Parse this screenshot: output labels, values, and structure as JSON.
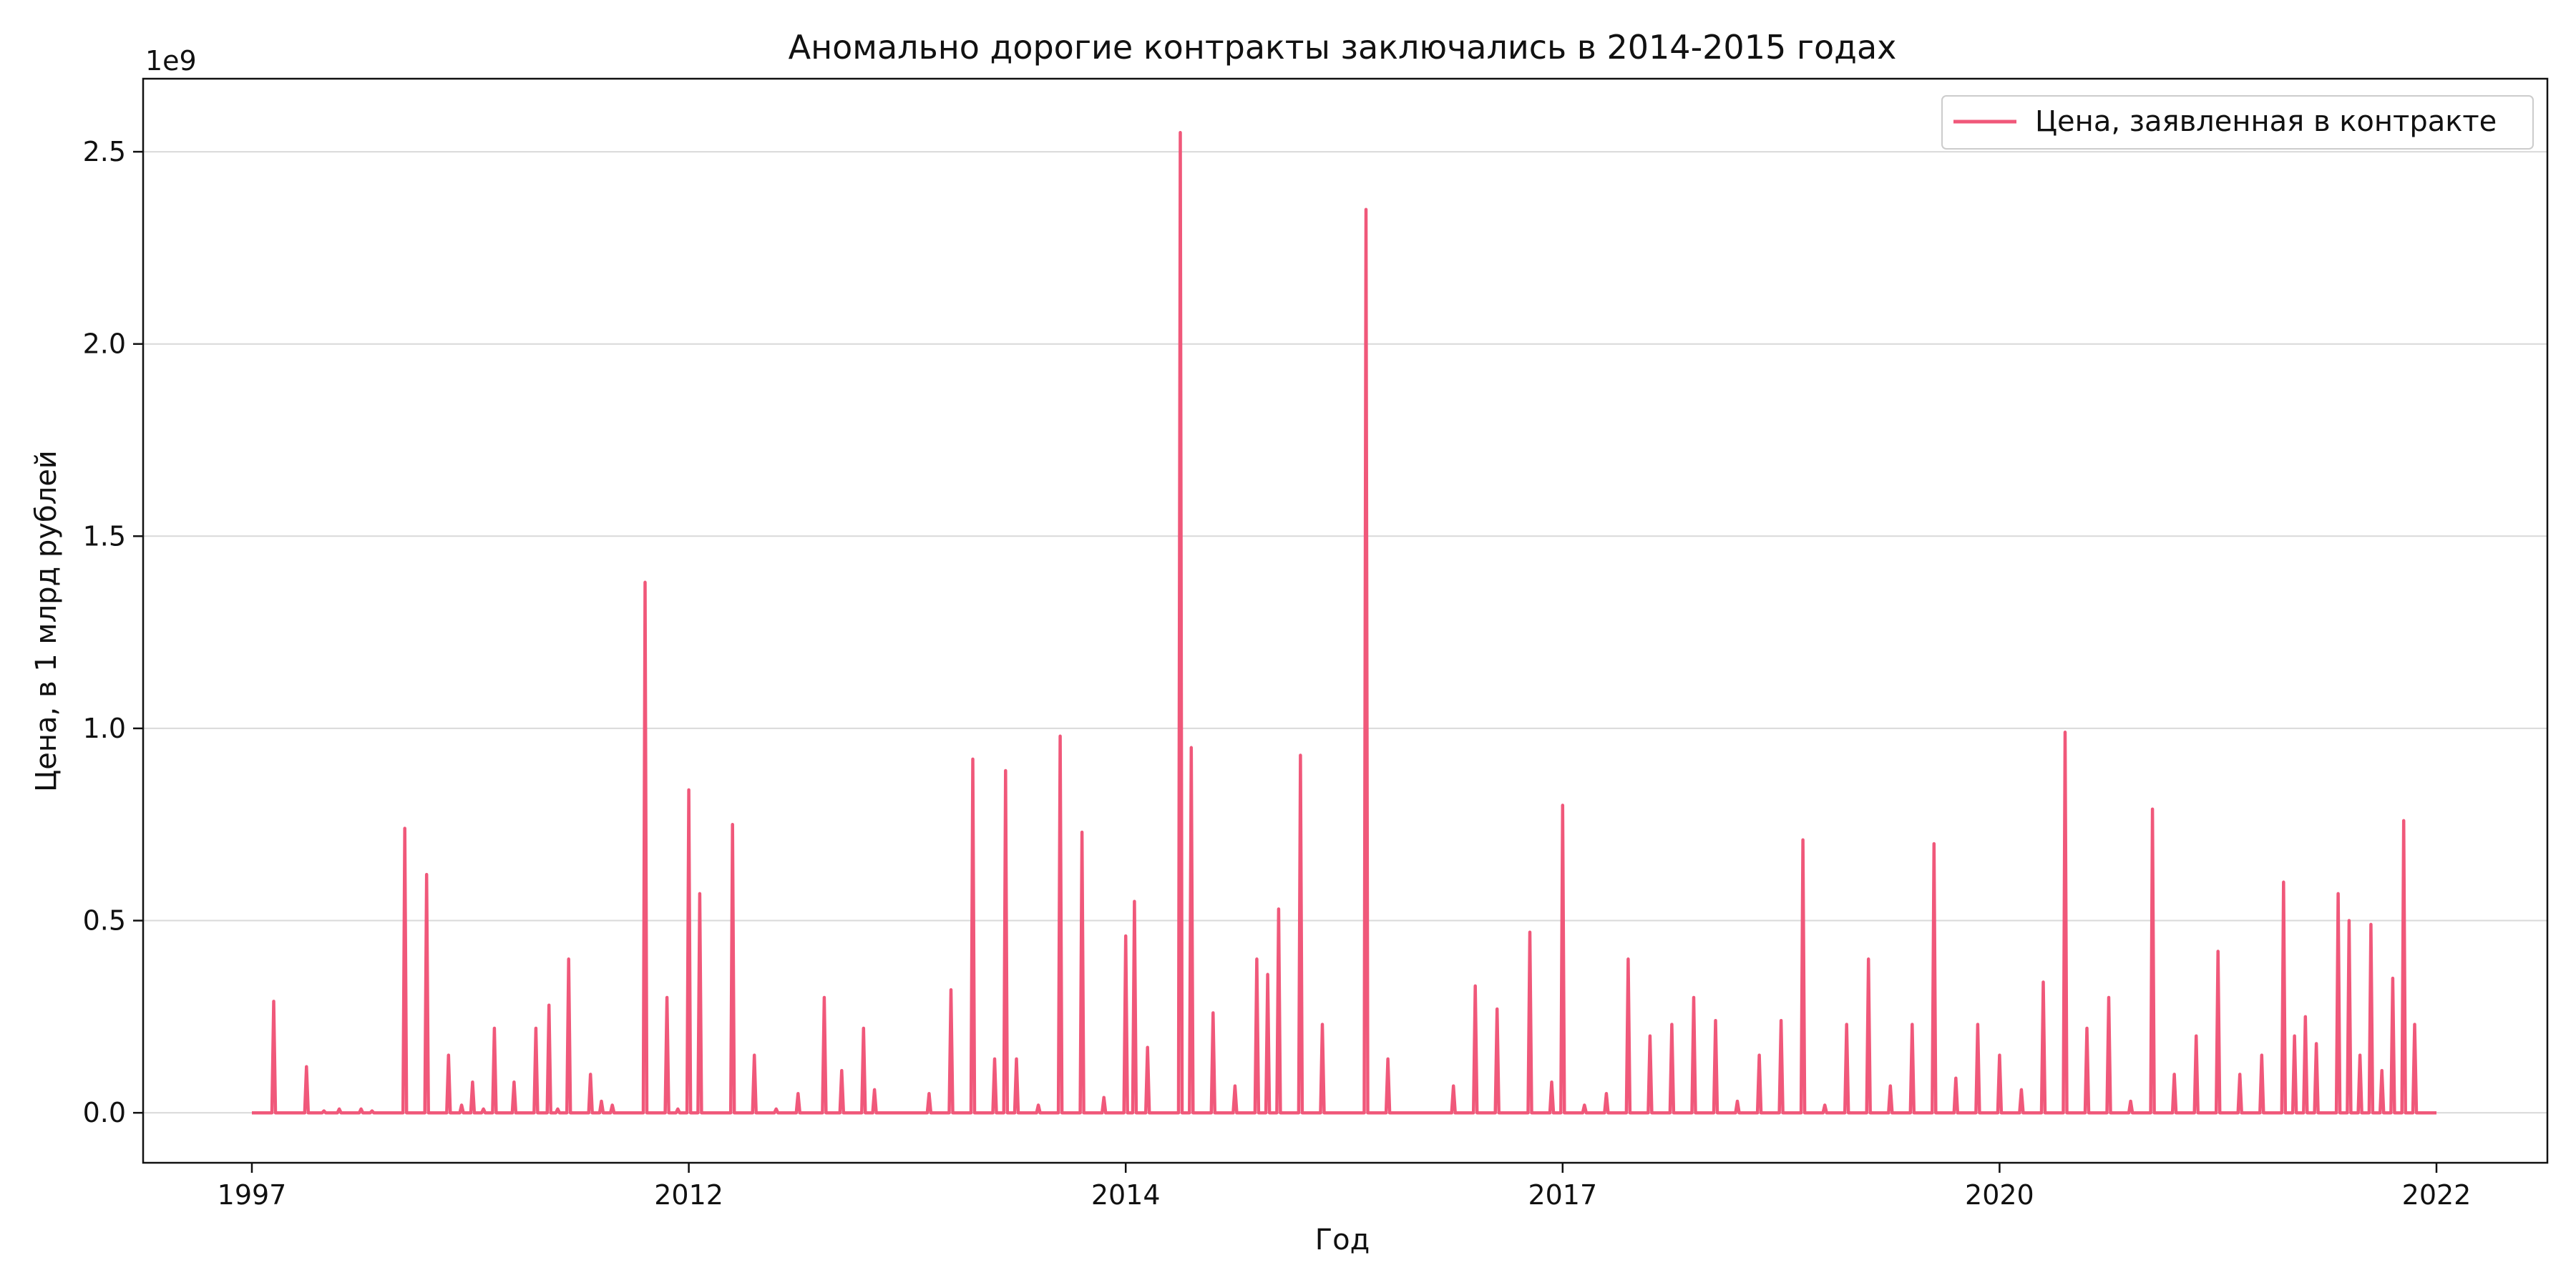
{
  "chart_data": {
    "type": "line",
    "title": "Аномально дорогие контракты заключались в 2014-2015 годах",
    "xlabel": "Год",
    "ylabel": "Цена, в 1 млрд рублей",
    "y_offset_label": "1e9",
    "x_tick_labels": [
      "1997",
      "2012",
      "2014",
      "2017",
      "2020",
      "2022"
    ],
    "y_ticks": [
      0.0,
      0.5,
      1.0,
      1.5,
      2.0,
      2.5
    ],
    "y_tick_labels": [
      "0.0",
      "0.5",
      "1.0",
      "1.5",
      "2.0",
      "2.5"
    ],
    "ylim": [
      -0.13,
      2.69
    ],
    "grid": "horizontal",
    "legend": "top-right",
    "color": "#f0587a",
    "series": [
      {
        "name": "Цена, заявленная в контракте",
        "x": [
          0,
          0.01,
          0.011,
          0.025,
          0.026,
          0.033,
          0.04,
          0.045,
          0.05,
          0.055,
          0.06,
          0.07,
          0.08,
          0.09,
          0.096,
          0.101,
          0.106,
          0.111,
          0.12,
          0.13,
          0.136,
          0.14,
          0.145,
          0.155,
          0.16,
          0.165,
          0.17,
          0.18,
          0.19,
          0.195,
          0.2,
          0.205,
          0.215,
          0.22,
          0.23,
          0.24,
          0.25,
          0.262,
          0.27,
          0.28,
          0.285,
          0.3,
          0.31,
          0.32,
          0.33,
          0.34,
          0.345,
          0.35,
          0.36,
          0.37,
          0.38,
          0.39,
          0.4,
          0.404,
          0.41,
          0.42,
          0.425,
          0.43,
          0.44,
          0.45,
          0.46,
          0.465,
          0.47,
          0.48,
          0.49,
          0.5,
          0.51,
          0.52,
          0.53,
          0.55,
          0.56,
          0.57,
          0.585,
          0.595,
          0.6,
          0.61,
          0.62,
          0.63,
          0.64,
          0.65,
          0.66,
          0.67,
          0.68,
          0.69,
          0.7,
          0.71,
          0.72,
          0.73,
          0.74,
          0.75,
          0.76,
          0.77,
          0.78,
          0.79,
          0.8,
          0.81,
          0.82,
          0.83,
          0.84,
          0.85,
          0.86,
          0.87,
          0.88,
          0.89,
          0.9,
          0.91,
          0.92,
          0.93,
          0.935,
          0.94,
          0.945,
          0.955,
          0.96,
          0.965,
          0.97,
          0.975,
          0.98,
          0.985,
          0.99,
          1.0
        ],
        "values": [
          0.0,
          0.29,
          0.0,
          0.12,
          0.0,
          0.005,
          0.01,
          0.0,
          0.01,
          0.005,
          0.0,
          0.74,
          0.62,
          0.15,
          0.02,
          0.08,
          0.01,
          0.22,
          0.08,
          0.22,
          0.28,
          0.01,
          0.4,
          0.1,
          0.03,
          0.02,
          0.0,
          1.38,
          0.3,
          0.01,
          0.84,
          0.57,
          0.0,
          0.75,
          0.15,
          0.01,
          0.05,
          0.3,
          0.11,
          0.22,
          0.06,
          0.0,
          0.05,
          0.32,
          0.92,
          0.14,
          0.89,
          0.14,
          0.02,
          0.98,
          0.73,
          0.04,
          0.46,
          0.55,
          0.17,
          0.0,
          2.55,
          0.95,
          0.26,
          0.07,
          0.4,
          0.36,
          0.53,
          0.93,
          0.23,
          0.0,
          2.35,
          0.14,
          0.0,
          0.07,
          0.33,
          0.27,
          0.47,
          0.08,
          0.8,
          0.02,
          0.05,
          0.4,
          0.2,
          0.23,
          0.3,
          0.24,
          0.03,
          0.15,
          0.24,
          0.71,
          0.02,
          0.23,
          0.4,
          0.07,
          0.23,
          0.7,
          0.09,
          0.23,
          0.15,
          0.06,
          0.34,
          0.99,
          0.22,
          0.3,
          0.03,
          0.79,
          0.1,
          0.2,
          0.42,
          0.1,
          0.15,
          0.6,
          0.2,
          0.25,
          0.18,
          0.57,
          0.5,
          0.15,
          0.49,
          0.11,
          0.35,
          0.76,
          0.23,
          0.0
        ]
      }
    ]
  }
}
